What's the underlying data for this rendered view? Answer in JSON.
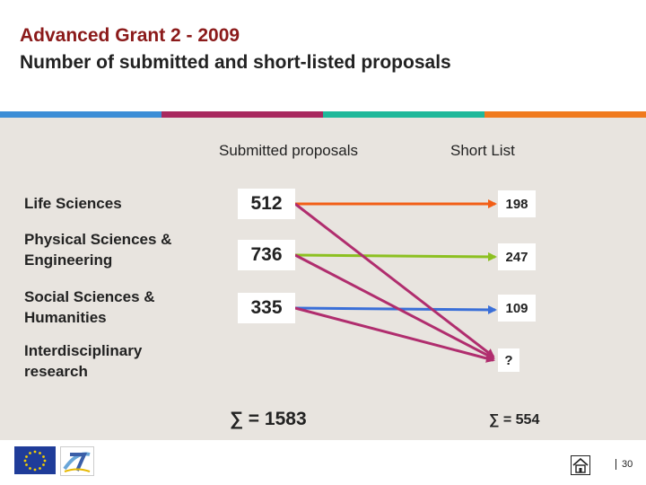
{
  "title": {
    "line1": "Advanced Grant 2 - 2009",
    "line2": "Number of submitted and short-listed proposals"
  },
  "colors": {
    "blue": "#3c8dd6",
    "purple": "#a8285e",
    "teal": "#1fb89a",
    "orange": "#f07a1e",
    "life": "#f25e16",
    "physical": "#8cc021",
    "social": "#3a6fd8",
    "inter": "#b02d6e"
  },
  "columns": {
    "submitted": "Submitted proposals",
    "shortlist": "Short List"
  },
  "rows": [
    {
      "label_lines": [
        "Life Sciences"
      ],
      "submitted": "512",
      "shortlist": "198"
    },
    {
      "label_lines": [
        "Physical Sciences &",
        "Engineering"
      ],
      "submitted": "736",
      "shortlist": "247"
    },
    {
      "label_lines": [
        "Social Sciences &",
        "Humanities"
      ],
      "submitted": "335",
      "shortlist": "109"
    },
    {
      "label_lines": [
        "Interdisciplinary",
        "research"
      ],
      "shortlist": "?"
    }
  ],
  "totals": {
    "submitted": "∑ = 1583",
    "shortlist": "∑ = 554"
  },
  "footer": {
    "page_number": "30",
    "icons": [
      "eu-flag-icon",
      "fp7-logo-icon",
      "home-icon"
    ]
  }
}
